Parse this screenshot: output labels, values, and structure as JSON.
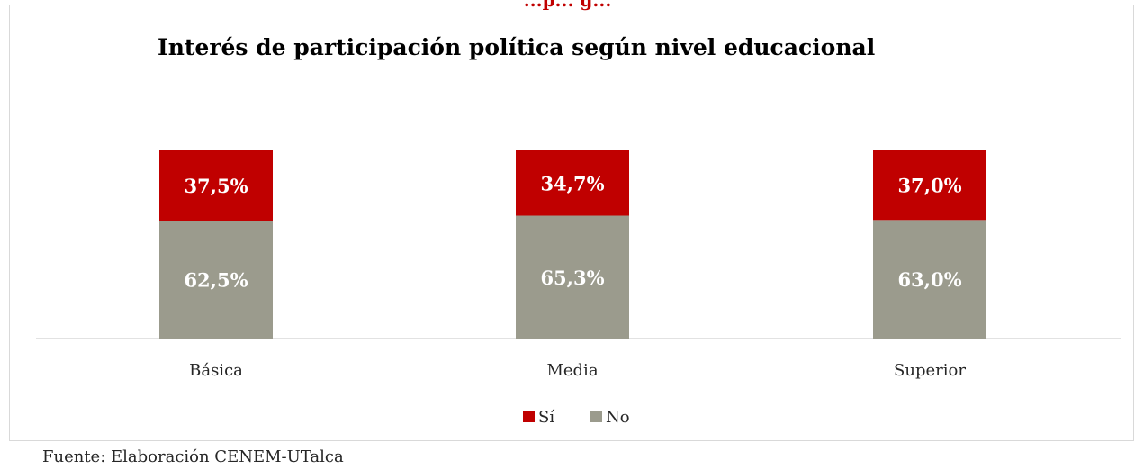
{
  "header_fragment": "...p... g...",
  "chart_data": {
    "type": "bar",
    "stacked": true,
    "title": "Interés de participación política según nivel educacional",
    "categories": [
      "Básica",
      "Media",
      "Superior"
    ],
    "series": [
      {
        "name": "No",
        "values": [
          62.5,
          65.3,
          63.0
        ],
        "labels": [
          "62,5%",
          "65,3%",
          "63,0%"
        ],
        "color": "#9b9b8d"
      },
      {
        "name": "Sí",
        "values": [
          37.5,
          34.7,
          37.0
        ],
        "labels": [
          "37,5%",
          "34,7%",
          "37,0%"
        ],
        "color": "#c00000"
      }
    ],
    "ylim": [
      0,
      100
    ],
    "legend": {
      "position": "bottom",
      "entries": [
        "Sí",
        "No"
      ]
    },
    "grid": false
  },
  "source_note": "Fuente: Elaboración CENEM-UTalca"
}
